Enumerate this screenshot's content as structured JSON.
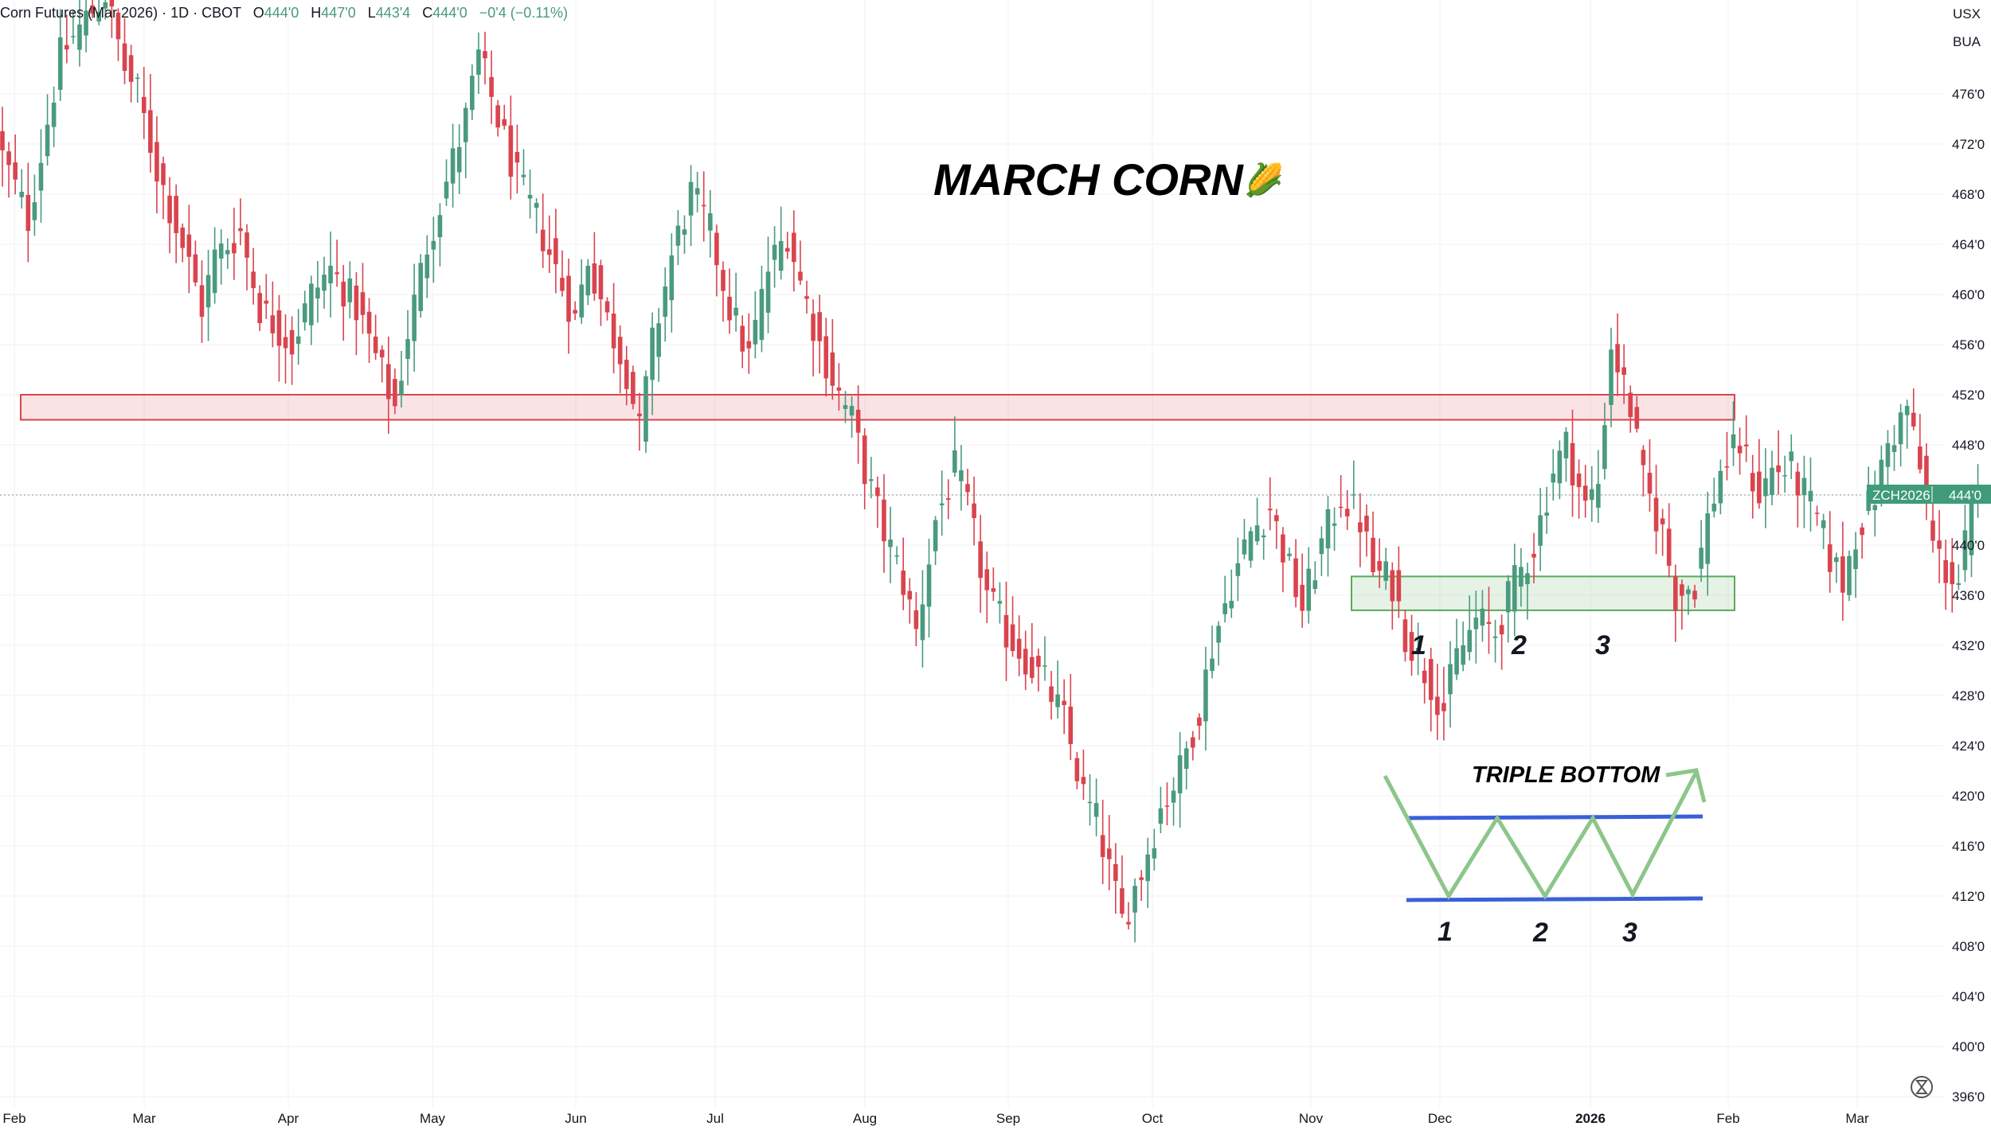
{
  "header": {
    "instrument": "Corn Futures (Mar 2026) · 1D · CBOT",
    "o_label": "O",
    "o_value": "444'0",
    "h_label": "H",
    "h_value": "447'0",
    "l_label": "L",
    "l_value": "443'4",
    "c_label": "C",
    "c_value": "444'0",
    "change": "−0'4 (−0.11%)"
  },
  "price_axis": {
    "currency": "USX",
    "unit": "BUA"
  },
  "ticker_tag": {
    "symbol": "ZCH2026",
    "price": "444'0"
  },
  "title": "MARCH CORN",
  "title_emoji": "🌽",
  "pattern_label": "TRIPLE BOTTOM",
  "touch_labels": [
    "1",
    "2",
    "3"
  ],
  "diagram_labels": [
    "1",
    "2",
    "3"
  ],
  "colors": {
    "up": "#4a9a7e",
    "down": "#d9444e",
    "resistance": "#d9444e",
    "support": "#5aaa5a",
    "pattern": "#8cc68a",
    "neckline": "#3a5fd9"
  },
  "chart_data": {
    "type": "candlestick",
    "ylim": [
      395,
      481
    ],
    "y_ticks": [
      "476'0",
      "472'0",
      "468'0",
      "464'0",
      "460'0",
      "456'0",
      "452'0",
      "448'0",
      "444'0",
      "440'0",
      "436'0",
      "432'0",
      "428'0",
      "424'0",
      "420'0",
      "416'0",
      "412'0",
      "408'0",
      "404'0",
      "400'0",
      "396'0"
    ],
    "x_ticks": [
      "Feb",
      "Mar",
      "Apr",
      "May",
      "Jun",
      "Jul",
      "Aug",
      "Sep",
      "Oct",
      "Nov",
      "Dec",
      "2026",
      "Feb",
      "Mar"
    ],
    "last_price": 444,
    "resistance_zone": [
      450,
      452
    ],
    "support_zone": [
      434.8,
      437.5
    ],
    "path": [
      [
        0,
        471
      ],
      [
        4,
        466
      ],
      [
        9,
        479
      ],
      [
        13,
        482
      ],
      [
        16,
        484
      ],
      [
        19,
        478
      ],
      [
        21,
        476
      ],
      [
        24,
        470
      ],
      [
        28,
        464
      ],
      [
        31,
        459
      ],
      [
        33,
        463
      ],
      [
        37,
        465
      ],
      [
        40,
        459
      ],
      [
        45,
        456
      ],
      [
        48,
        460
      ],
      [
        51,
        462
      ],
      [
        55,
        459
      ],
      [
        58,
        455
      ],
      [
        61,
        451
      ],
      [
        63,
        457
      ],
      [
        66,
        464
      ],
      [
        69,
        469
      ],
      [
        72,
        474
      ],
      [
        74,
        479
      ],
      [
        77,
        474
      ],
      [
        80,
        469
      ],
      [
        83,
        466
      ],
      [
        86,
        462
      ],
      [
        89,
        458
      ],
      [
        91,
        463
      ],
      [
        94,
        458
      ],
      [
        97,
        454
      ],
      [
        99,
        449
      ],
      [
        101,
        456
      ],
      [
        104,
        463
      ],
      [
        107,
        468
      ],
      [
        110,
        465
      ],
      [
        113,
        459
      ],
      [
        116,
        455
      ],
      [
        119,
        462
      ],
      [
        122,
        465
      ],
      [
        124,
        461
      ],
      [
        127,
        456
      ],
      [
        130,
        452
      ],
      [
        132,
        450
      ],
      [
        134,
        446
      ],
      [
        137,
        441
      ],
      [
        140,
        437
      ],
      [
        142,
        433
      ],
      [
        145,
        442
      ],
      [
        148,
        446
      ],
      [
        150,
        443
      ],
      [
        153,
        436
      ],
      [
        156,
        433
      ],
      [
        159,
        431
      ],
      [
        162,
        429
      ],
      [
        165,
        426
      ],
      [
        168,
        420
      ],
      [
        170,
        418
      ],
      [
        172,
        414
      ],
      [
        174,
        410
      ],
      [
        177,
        414
      ],
      [
        180,
        419
      ],
      [
        183,
        422
      ],
      [
        186,
        427
      ],
      [
        188,
        432
      ],
      [
        191,
        437
      ],
      [
        194,
        441
      ],
      [
        197,
        443
      ],
      [
        200,
        438
      ],
      [
        202,
        435
      ],
      [
        205,
        440
      ],
      [
        208,
        444
      ],
      [
        211,
        442
      ],
      [
        213,
        438
      ],
      [
        216,
        437
      ],
      [
        218,
        433
      ],
      [
        221,
        430
      ],
      [
        224,
        427
      ],
      [
        226,
        431
      ],
      [
        229,
        434
      ],
      [
        232,
        433
      ],
      [
        235,
        437
      ],
      [
        238,
        440
      ],
      [
        241,
        446
      ],
      [
        243,
        448
      ],
      [
        246,
        443
      ],
      [
        248,
        445
      ],
      [
        250,
        456
      ],
      [
        253,
        451
      ],
      [
        255,
        445
      ],
      [
        258,
        441
      ],
      [
        260,
        436
      ],
      [
        263,
        437
      ],
      [
        265,
        442
      ],
      [
        267,
        446
      ],
      [
        270,
        448
      ],
      [
        273,
        444
      ],
      [
        275,
        446
      ],
      [
        278,
        446
      ],
      [
        280,
        444
      ],
      [
        282,
        442
      ],
      [
        284,
        439
      ],
      [
        286,
        437
      ],
      [
        288,
        441
      ],
      [
        291,
        444
      ],
      [
        293,
        448
      ],
      [
        296,
        451
      ],
      [
        298,
        446
      ],
      [
        300,
        440
      ],
      [
        302,
        438
      ],
      [
        304,
        437
      ],
      [
        306,
        443
      ],
      [
        307,
        444
      ]
    ]
  }
}
